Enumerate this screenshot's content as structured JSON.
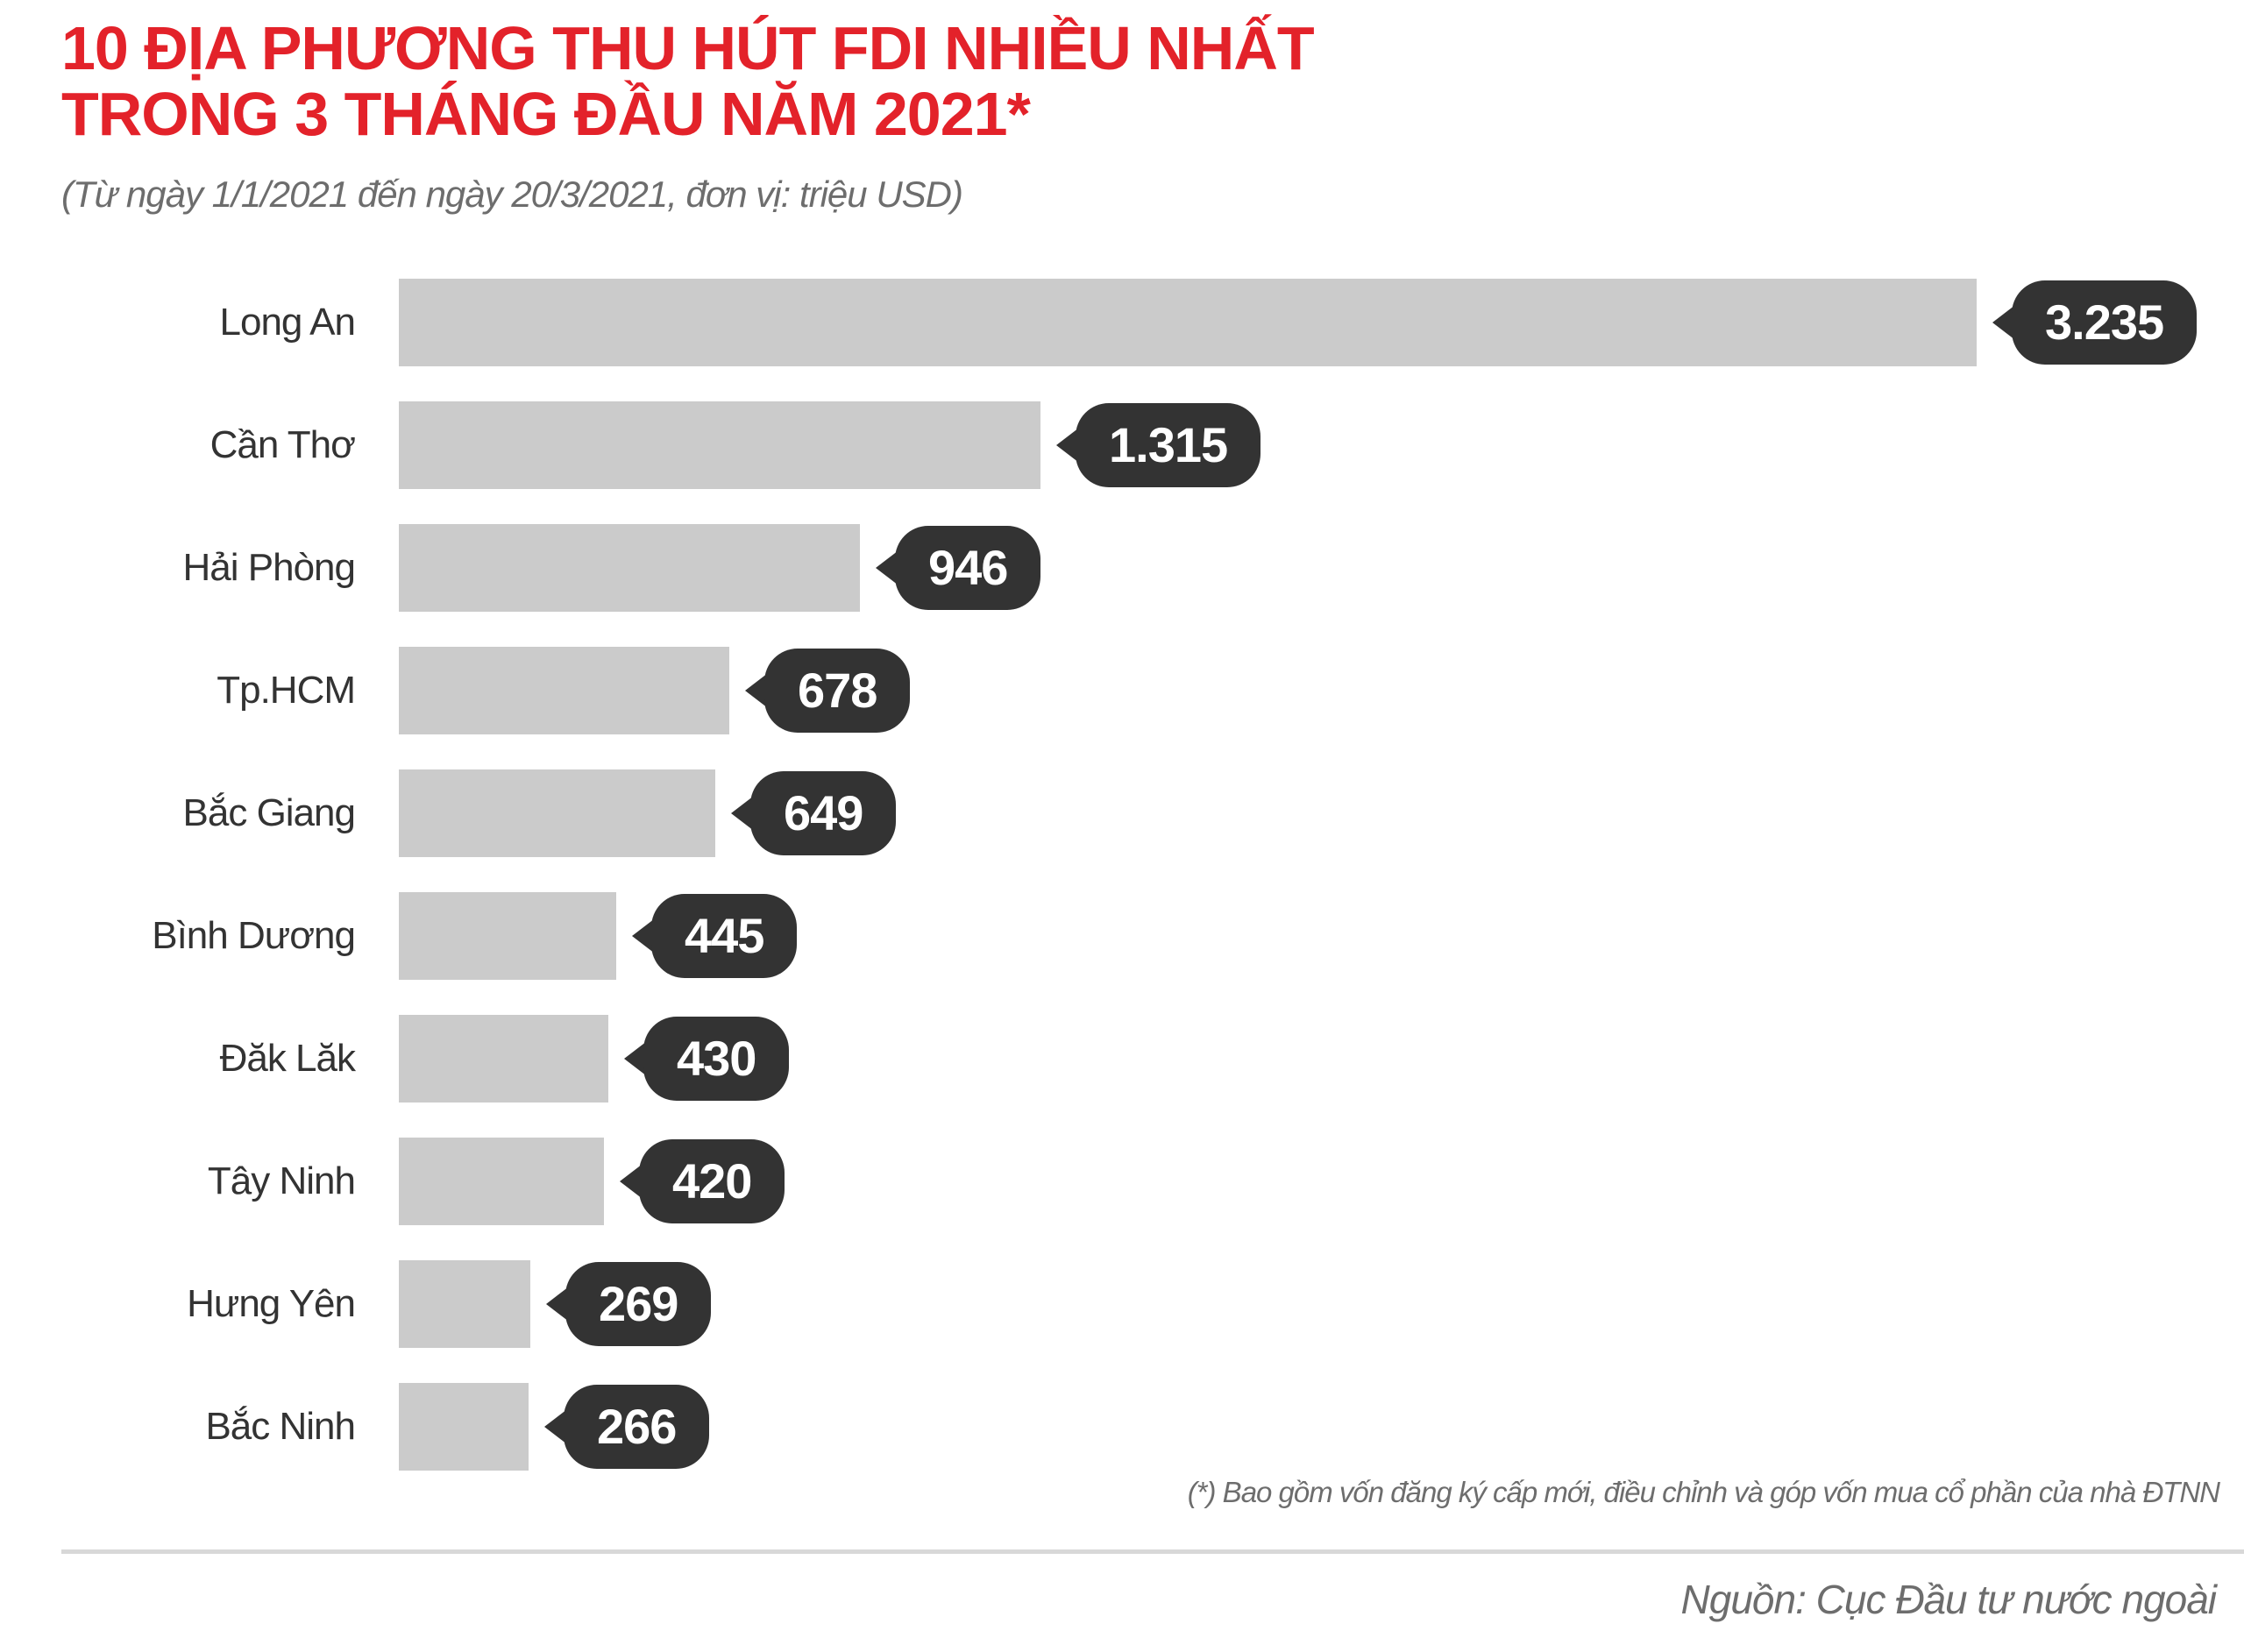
{
  "header": {
    "title_line1": "10 ĐỊA PHƯƠNG THU HÚT FDI NHIỀU NHẤT",
    "title_line2": "TRONG 3 THÁNG ĐẦU NĂM 2021*",
    "subtitle": "(Từ ngày 1/1/2021 đến ngày 20/3/2021, đơn vị: triệu USD)",
    "title_color": "#e3222a"
  },
  "chart_data": {
    "type": "bar",
    "orientation": "horizontal",
    "title": "10 ĐỊA PHƯƠNG THU HÚT FDI NHIỀU NHẤT TRONG 3 THÁNG ĐẦU NĂM 2021*",
    "subtitle": "(Từ ngày 1/1/2021 đến ngày 20/3/2021, đơn vị: triệu USD)",
    "unit": "triệu USD",
    "categories": [
      "Long An",
      "Cần Thơ",
      "Hải Phòng",
      "Tp.HCM",
      "Bắc Giang",
      "Bình Dương",
      "Đăk Lăk",
      "Tây Ninh",
      "Hưng Yên",
      "Bắc Ninh"
    ],
    "values": [
      3235,
      1315,
      946,
      678,
      649,
      445,
      430,
      420,
      269,
      266
    ],
    "value_labels": [
      "3.235",
      "1.315",
      "946",
      "678",
      "649",
      "445",
      "430",
      "420",
      "269",
      "266"
    ],
    "xlim": [
      0,
      3235
    ],
    "grid": false,
    "legend": false,
    "bar_color": "#cbcbcb",
    "badge_color": "#333333"
  },
  "footer": {
    "footnote": "(*) Bao gồm vốn đăng ký cấp mới, điều chỉnh và góp vốn mua cổ phần của nhà ĐTNN",
    "source": "Nguồn: Cục Đầu tư nước ngoài"
  }
}
